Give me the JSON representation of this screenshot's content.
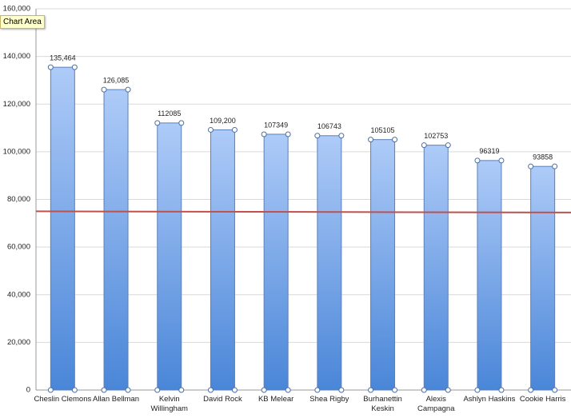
{
  "tooltip": "Chart Area",
  "chart_data": {
    "type": "bar",
    "categories": [
      "Cheslin Clemons",
      "Allan Bellman",
      "Kelvin\nWillingham",
      "David Rock",
      "KB Melear",
      "Shea Rigby",
      "Burhanettin\nKeskin",
      "Alexis\nCampagna",
      "Ashlyn Haskins",
      "Cookie Harris"
    ],
    "values": [
      135464,
      126085,
      112085,
      109200,
      107349,
      106743,
      105105,
      102753,
      96319,
      93858
    ],
    "value_labels": [
      "135,464",
      "126,085",
      "112085",
      "109,200",
      "107349",
      "106743",
      "105105",
      "102753",
      "96319",
      "93858"
    ],
    "color": "#6f9fe3",
    "reference_line": {
      "color": "#c0504d",
      "values": [
        75000,
        74500
      ]
    },
    "ylim": [
      0,
      160000
    ],
    "yticks": [
      0,
      {
        "value": 20000,
        "label": "20,000"
      },
      {
        "value": 40000,
        "label": "40,000"
      },
      {
        "value": 60000,
        "label": "60,000"
      },
      {
        "value": 80000,
        "label": "80,000"
      },
      {
        "value": 100000,
        "label": "100,000"
      },
      {
        "value": 120000,
        "label": "120,000"
      },
      {
        "value": 140000,
        "label": "140,000"
      },
      {
        "value": 160000,
        "label": "160,000"
      }
    ],
    "grid": true
  }
}
